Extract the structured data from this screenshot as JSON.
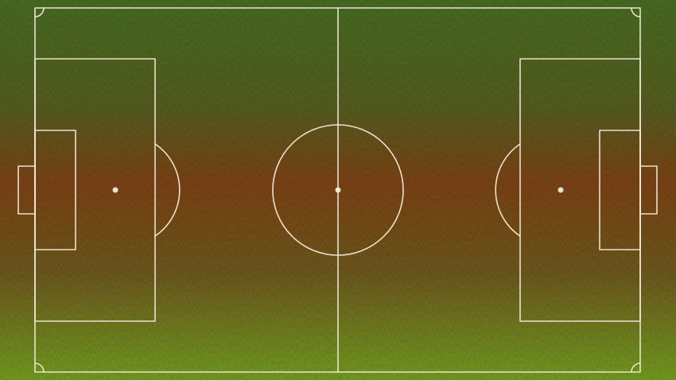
{
  "scene": {
    "type": "soccer-pitch-top-view",
    "surface": "grass",
    "colors": {
      "grass_top": "#3f6a1f",
      "grass_upper_mid": "#4f5a1b",
      "grass_middle": "#7a3b10",
      "grass_lower_mid": "#6a5418",
      "grass_bottom": "#71a11b",
      "line": "#f0ead6"
    },
    "markings": [
      "touchline-top",
      "touchline-bottom",
      "goal-line-left",
      "goal-line-right",
      "halfway-line",
      "center-circle",
      "center-spot",
      "left-penalty-area",
      "right-penalty-area",
      "left-goal-area",
      "right-goal-area",
      "left-goal",
      "right-goal",
      "left-penalty-spot",
      "right-penalty-spot",
      "left-penalty-arc",
      "right-penalty-arc",
      "corner-arcs"
    ]
  }
}
